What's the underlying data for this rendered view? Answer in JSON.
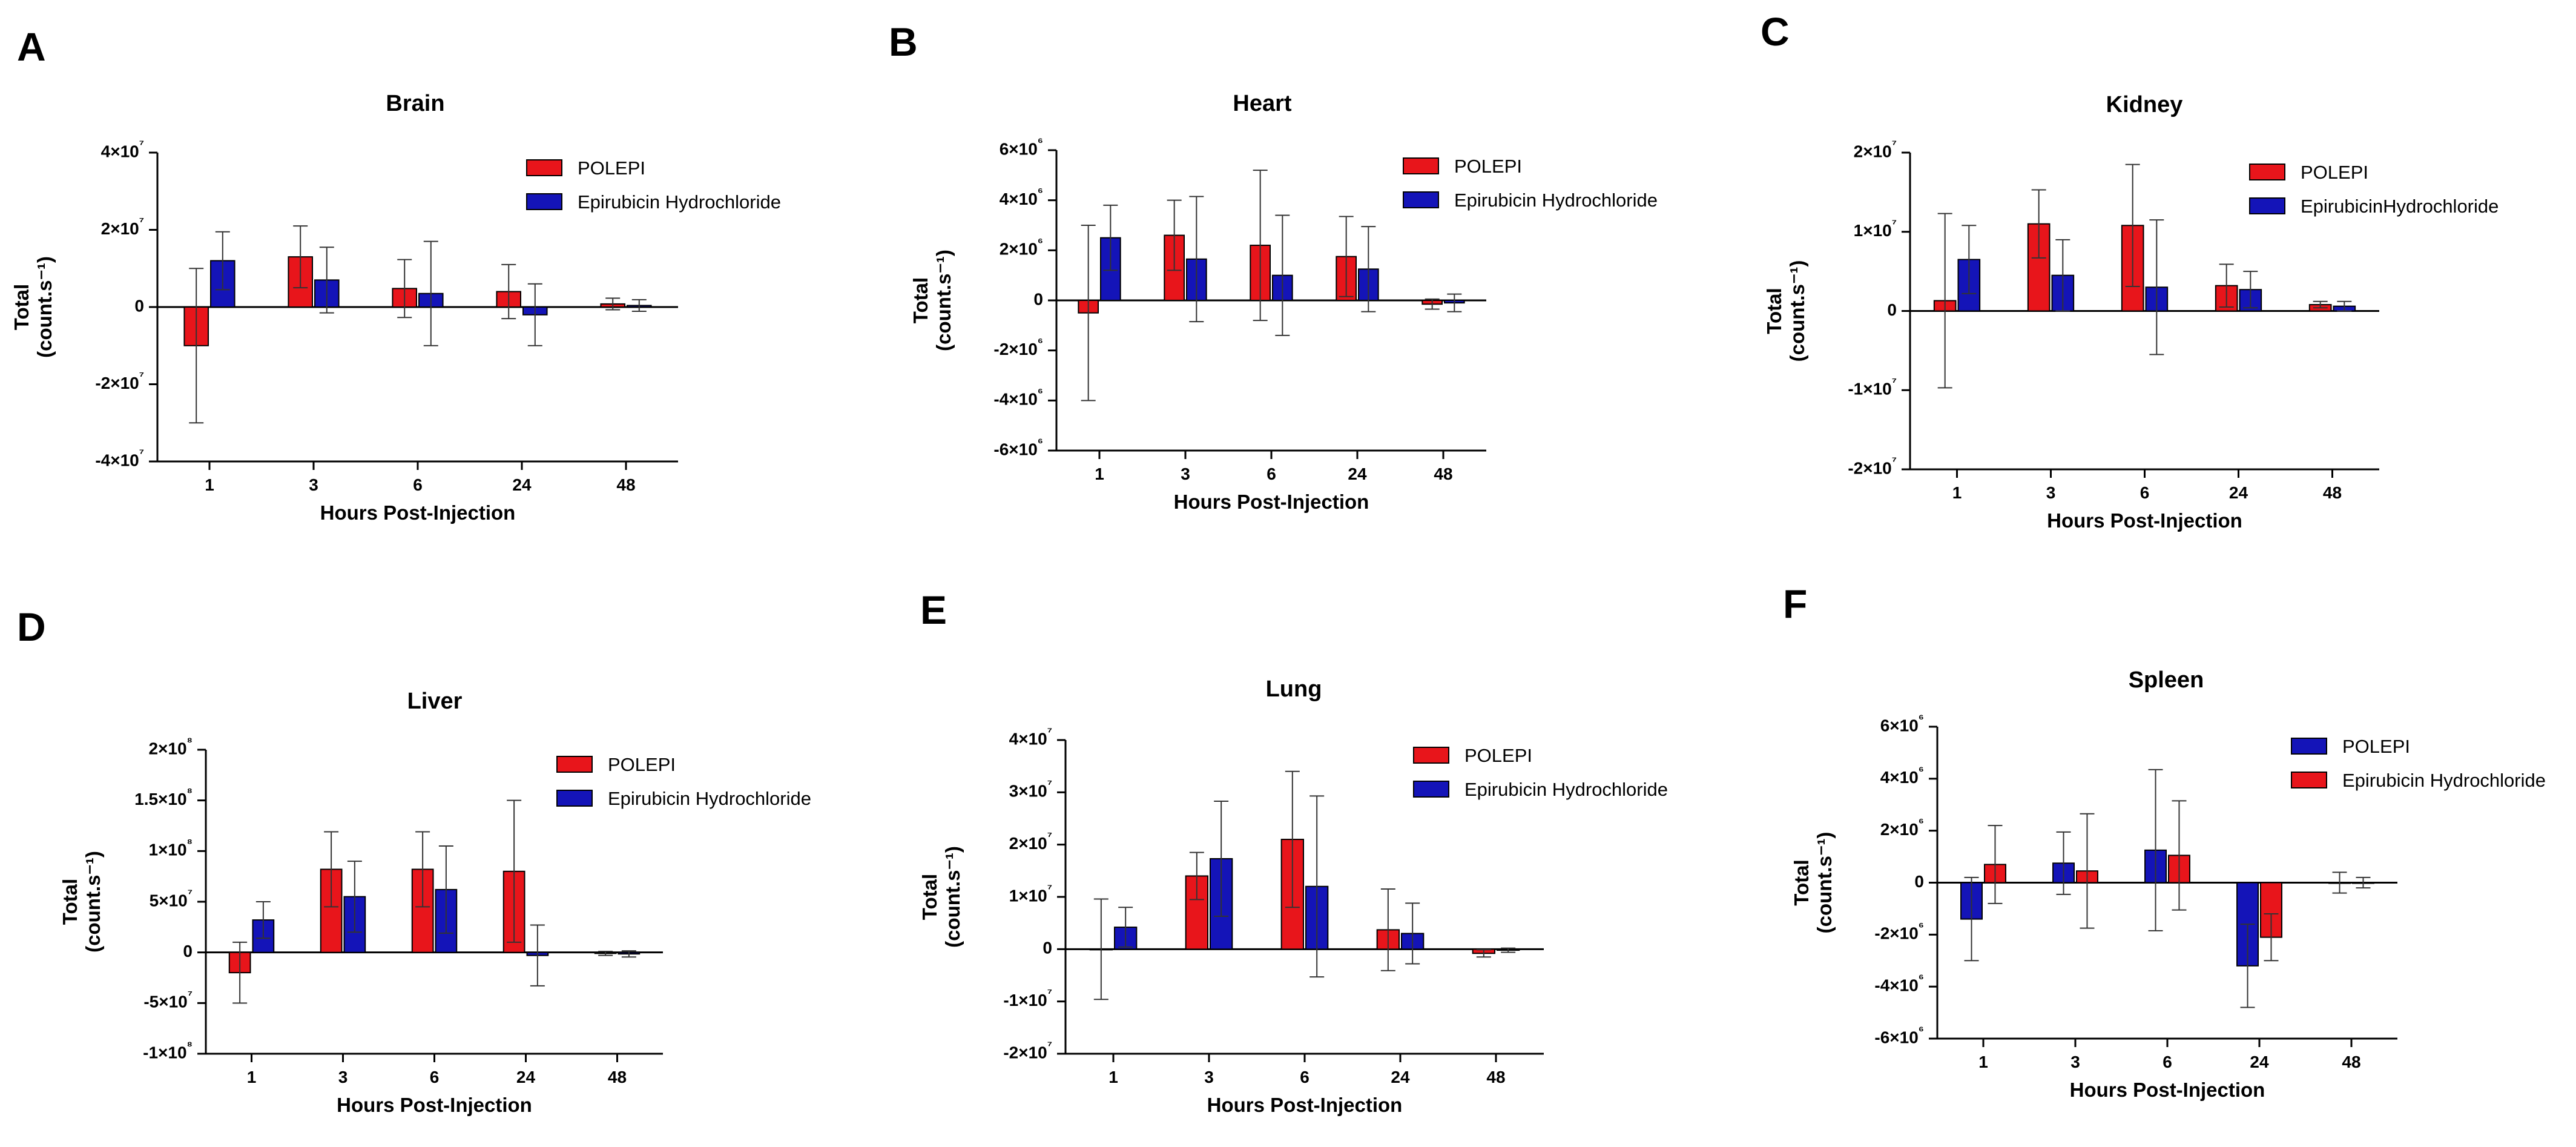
{
  "figure": {
    "colors": {
      "red": "#e8151b",
      "blue": "#1414b8",
      "axis": "#000000",
      "error": "#333333"
    }
  },
  "chart_data": [
    {
      "panel_label": "A",
      "type": "bar",
      "title": "Brain",
      "xlabel": "Hours Post-Injection",
      "ylabel": [
        "Total",
        "(count.s⁻¹)"
      ],
      "categories": [
        "1",
        "3",
        "6",
        "24",
        "48"
      ],
      "ylim": [
        -40000000,
        40000000
      ],
      "yticks": [
        {
          "value": -40000000,
          "label": "-4×10⁷"
        },
        {
          "value": -20000000,
          "label": "-2×10⁷"
        },
        {
          "value": 0,
          "label": "0"
        },
        {
          "value": 20000000,
          "label": "2×10⁷"
        },
        {
          "value": 40000000,
          "label": "4×10⁷"
        }
      ],
      "series": [
        {
          "name": "POLEPI",
          "color": "#e8151b",
          "values": [
            -10000000,
            13000000,
            4800000,
            4000000,
            800000
          ],
          "errors": [
            20000000,
            8000000,
            7500000,
            7000000,
            1500000
          ]
        },
        {
          "name": "Epirubicin Hydrochloride",
          "color": "#1414b8",
          "values": [
            12000000,
            7000000,
            3500000,
            -2000000,
            400000
          ],
          "errors": [
            7500000,
            8500000,
            13500000,
            8000000,
            1500000
          ]
        }
      ],
      "legend_position": "top-right"
    },
    {
      "panel_label": "B",
      "type": "bar",
      "title": "Heart",
      "xlabel": "Hours Post-Injection",
      "ylabel": [
        "Total",
        "(count.s⁻¹)"
      ],
      "categories": [
        "1",
        "3",
        "6",
        "24",
        "48"
      ],
      "ylim": [
        -6000000,
        6000000
      ],
      "yticks": [
        {
          "value": -6000000,
          "label": "-6×10⁶"
        },
        {
          "value": -4000000,
          "label": "-4×10⁶"
        },
        {
          "value": -2000000,
          "label": "-2×10⁶"
        },
        {
          "value": 0,
          "label": "0"
        },
        {
          "value": 2000000,
          "label": "2×10⁶"
        },
        {
          "value": 4000000,
          "label": "4×10⁶"
        },
        {
          "value": 6000000,
          "label": "6×10⁶"
        }
      ],
      "series": [
        {
          "name": "POLEPI",
          "color": "#e8151b",
          "values": [
            -500000,
            2600000,
            2200000,
            1750000,
            -150000
          ],
          "errors": [
            3500000,
            1400000,
            3000000,
            1600000,
            200000
          ]
        },
        {
          "name": "Epirubicin Hydrochloride",
          "color": "#1414b8",
          "values": [
            2500000,
            1650000,
            1000000,
            1250000,
            -100000
          ],
          "errors": [
            1300000,
            2500000,
            2400000,
            1700000,
            350000
          ]
        }
      ],
      "legend_position": "top-right"
    },
    {
      "panel_label": "C",
      "type": "bar",
      "title": "Kidney",
      "xlabel": "Hours Post-Injection",
      "ylabel": [
        "Total",
        "(count.s⁻¹)"
      ],
      "categories": [
        "1",
        "3",
        "6",
        "24",
        "48"
      ],
      "ylim": [
        -20000000,
        20000000
      ],
      "yticks": [
        {
          "value": -20000000,
          "label": "-2×10⁷"
        },
        {
          "value": -10000000,
          "label": "-1×10⁷"
        },
        {
          "value": 0,
          "label": "0"
        },
        {
          "value": 10000000,
          "label": "1×10⁷"
        },
        {
          "value": 20000000,
          "label": "2×10⁷"
        }
      ],
      "series": [
        {
          "name": "POLEPI",
          "color": "#e8151b",
          "values": [
            1300000,
            11000000,
            10800000,
            3200000,
            800000
          ],
          "errors": [
            11000000,
            4300000,
            7700000,
            2700000,
            400000
          ]
        },
        {
          "name": "EpirubicinHydrochloride",
          "color": "#1414b8",
          "values": [
            6500000,
            4500000,
            3000000,
            2700000,
            600000
          ],
          "errors": [
            4300000,
            4500000,
            8500000,
            2300000,
            600000
          ]
        }
      ],
      "legend_position": "top-right"
    },
    {
      "panel_label": "D",
      "type": "bar",
      "title": "Liver",
      "xlabel": "Hours Post-Injection",
      "ylabel": [
        "Total",
        "(count.s⁻¹)"
      ],
      "categories": [
        "1",
        "3",
        "6",
        "24",
        "48"
      ],
      "ylim": [
        -100000000,
        200000000
      ],
      "yticks": [
        {
          "value": -100000000,
          "label": "-1×10⁸"
        },
        {
          "value": -50000000,
          "label": "-5×10⁷"
        },
        {
          "value": 0,
          "label": "0"
        },
        {
          "value": 50000000,
          "label": "5×10⁷"
        },
        {
          "value": 100000000,
          "label": "1×10⁸"
        },
        {
          "value": 150000000,
          "label": "1.5×10⁸"
        },
        {
          "value": 200000000,
          "label": "2×10⁸"
        }
      ],
      "series": [
        {
          "name": "POLEPI",
          "color": "#e8151b",
          "values": [
            -20000000,
            82000000,
            82000000,
            80000000,
            -1000000
          ],
          "errors": [
            30000000,
            37000000,
            37000000,
            70000000,
            2000000
          ]
        },
        {
          "name": "Epirubicin Hydrochloride",
          "color": "#1414b8",
          "values": [
            32000000,
            55000000,
            62000000,
            -3000000,
            -1500000
          ],
          "errors": [
            18000000,
            35000000,
            43000000,
            30000000,
            3000000
          ]
        }
      ],
      "legend_position": "top-right"
    },
    {
      "panel_label": "E",
      "type": "bar",
      "title": "Lung",
      "xlabel": "Hours Post-Injection",
      "ylabel": [
        "Total",
        "(count.s⁻¹)"
      ],
      "categories": [
        "1",
        "3",
        "6",
        "24",
        "48"
      ],
      "ylim": [
        -20000000,
        40000000
      ],
      "yticks": [
        {
          "value": -20000000,
          "label": "-2×10⁷"
        },
        {
          "value": -10000000,
          "label": "-1×10⁷"
        },
        {
          "value": 0,
          "label": "0"
        },
        {
          "value": 10000000,
          "label": "1×10⁷"
        },
        {
          "value": 20000000,
          "label": "2×10⁷"
        },
        {
          "value": 30000000,
          "label": "3×10⁷"
        },
        {
          "value": 40000000,
          "label": "4×10⁷"
        }
      ],
      "series": [
        {
          "name": "POLEPI",
          "color": "#e8151b",
          "values": [
            0,
            14000000,
            21000000,
            3700000,
            -800000
          ],
          "errors": [
            9600000,
            4500000,
            13000000,
            7800000,
            700000
          ]
        },
        {
          "name": "Epirubicin Hydrochloride",
          "color": "#1414b8",
          "values": [
            4200000,
            17300000,
            12000000,
            3000000,
            -200000
          ],
          "errors": [
            3800000,
            11000000,
            17300000,
            5800000,
            400000
          ]
        }
      ],
      "legend_position": "top-right"
    },
    {
      "panel_label": "F",
      "type": "bar",
      "title": "Spleen",
      "xlabel": "Hours Post-Injection",
      "ylabel": [
        "Total",
        "(count.s⁻¹)"
      ],
      "categories": [
        "1",
        "3",
        "6",
        "24",
        "48"
      ],
      "ylim": [
        -6000000,
        6000000
      ],
      "yticks": [
        {
          "value": -6000000,
          "label": "-6×10⁶"
        },
        {
          "value": -4000000,
          "label": "-4×10⁶"
        },
        {
          "value": -2000000,
          "label": "-2×10⁶"
        },
        {
          "value": 0,
          "label": "0"
        },
        {
          "value": 2000000,
          "label": "2×10⁶"
        },
        {
          "value": 4000000,
          "label": "4×10⁶"
        },
        {
          "value": 6000000,
          "label": "6×10⁶"
        }
      ],
      "series": [
        {
          "name": "POLEPI",
          "color": "#1414b8",
          "values": [
            -1400000,
            750000,
            1250000,
            -3200000,
            0
          ],
          "errors": [
            1600000,
            1200000,
            3100000,
            1600000,
            400000
          ]
        },
        {
          "name": "Epirubicin Hydrochloride",
          "color": "#e8151b",
          "values": [
            700000,
            450000,
            1050000,
            -2100000,
            0
          ],
          "errors": [
            1500000,
            2200000,
            2100000,
            900000,
            200000
          ]
        }
      ],
      "legend_position": "top-right"
    }
  ]
}
